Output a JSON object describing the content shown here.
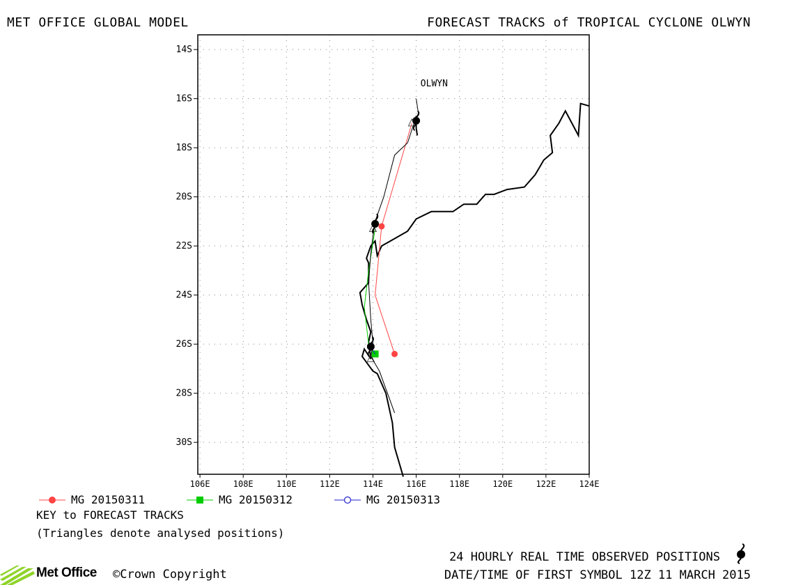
{
  "header": {
    "left_title": "MET OFFICE GLOBAL MODEL",
    "right_title": "FORECAST TRACKS of TROPICAL CYCLONE OLWYN"
  },
  "map": {
    "lat_range": [
      -31.3,
      -13.4
    ],
    "lon_range": [
      105.9,
      124.0
    ],
    "lat_ticks": [
      {
        "value": -14,
        "label": "14S"
      },
      {
        "value": -16,
        "label": "16S"
      },
      {
        "value": -18,
        "label": "18S"
      },
      {
        "value": -20,
        "label": "20S"
      },
      {
        "value": -22,
        "label": "22S"
      },
      {
        "value": -24,
        "label": "24S"
      },
      {
        "value": -26,
        "label": "26S"
      },
      {
        "value": -28,
        "label": "28S"
      },
      {
        "value": -30,
        "label": "30S"
      }
    ],
    "lon_ticks": [
      {
        "value": 106,
        "label": "106E"
      },
      {
        "value": 108,
        "label": "108E"
      },
      {
        "value": 110,
        "label": "110E"
      },
      {
        "value": 112,
        "label": "112E"
      },
      {
        "value": 114,
        "label": "114E"
      },
      {
        "value": 116,
        "label": "116E"
      },
      {
        "value": 118,
        "label": "118E"
      },
      {
        "value": 120,
        "label": "120E"
      },
      {
        "value": 122,
        "label": "122E"
      },
      {
        "value": 124,
        "label": "124E"
      }
    ],
    "storm_label": {
      "text": "OLWYN",
      "lon": 116.2,
      "lat": -15.5
    },
    "coastline": [
      [
        115.4,
        -31.4
      ],
      [
        115.0,
        -30.2
      ],
      [
        114.9,
        -29.2
      ],
      [
        114.6,
        -28.0
      ],
      [
        114.2,
        -27.2
      ],
      [
        114.0,
        -27.1
      ],
      [
        113.5,
        -26.5
      ],
      [
        113.6,
        -26.2
      ],
      [
        113.9,
        -26.6
      ],
      [
        113.8,
        -25.9
      ],
      [
        113.9,
        -25.5
      ],
      [
        113.7,
        -25.0
      ],
      [
        113.5,
        -24.4
      ],
      [
        113.4,
        -23.9
      ],
      [
        113.8,
        -23.5
      ],
      [
        113.8,
        -22.7
      ],
      [
        113.7,
        -22.5
      ],
      [
        113.9,
        -22.0
      ],
      [
        114.1,
        -21.8
      ],
      [
        114.2,
        -22.4
      ],
      [
        114.4,
        -22.0
      ],
      [
        115.0,
        -21.7
      ],
      [
        115.6,
        -21.4
      ],
      [
        116.0,
        -20.9
      ],
      [
        116.7,
        -20.6
      ],
      [
        117.7,
        -20.6
      ],
      [
        118.2,
        -20.3
      ],
      [
        118.8,
        -20.3
      ],
      [
        119.2,
        -19.9
      ],
      [
        119.6,
        -19.9
      ],
      [
        120.2,
        -19.7
      ],
      [
        121.0,
        -19.6
      ],
      [
        121.5,
        -19.1
      ],
      [
        121.9,
        -18.5
      ],
      [
        122.3,
        -18.2
      ],
      [
        122.2,
        -17.5
      ],
      [
        122.6,
        -17.0
      ],
      [
        122.9,
        -16.5
      ],
      [
        123.5,
        -17.5
      ],
      [
        123.6,
        -16.2
      ],
      [
        124.0,
        -16.3
      ]
    ],
    "coast_island": [
      [
        116.0,
        -16.7
      ],
      [
        116.0,
        -17.2
      ],
      [
        116.05,
        -17.5
      ]
    ],
    "colors": {
      "mg_20150311": "#ff4444",
      "mg_20150312": "#00cc00",
      "mg_20150313": "#2222cc",
      "observed": "#000000",
      "grid": "#808080",
      "coast": "#000000"
    },
    "tracks": [
      {
        "name": "MG 20150311",
        "color_key": "mg_20150311",
        "points": [
          [
            115.8,
            -17.0
          ],
          [
            114.4,
            -21.2
          ],
          [
            114.1,
            -24.0
          ],
          [
            115.0,
            -26.4
          ]
        ],
        "symbols": [
          [
            114.4,
            -21.2
          ],
          [
            115.0,
            -26.4
          ]
        ]
      },
      {
        "name": "MG 20150312",
        "color_key": "mg_20150312",
        "points": [
          [
            114.1,
            -21.3
          ],
          [
            113.8,
            -23.0
          ],
          [
            113.6,
            -24.5
          ],
          [
            113.8,
            -26.0
          ],
          [
            114.1,
            -26.4
          ]
        ],
        "symbols": [
          [
            114.1,
            -26.4
          ]
        ]
      },
      {
        "name": "MG 20150313",
        "color_key": "mg_20150313",
        "points": [
          [
            113.9,
            -26.1
          ],
          [
            114.1,
            -26.4
          ]
        ],
        "symbols": []
      }
    ],
    "observed_track": [
      [
        116.0,
        -16.0
      ],
      [
        116.1,
        -16.6
      ],
      [
        115.9,
        -17.0
      ],
      [
        115.6,
        -17.8
      ],
      [
        115.0,
        -18.3
      ],
      [
        114.5,
        -20.0
      ],
      [
        114.1,
        -21.0
      ],
      [
        114.0,
        -21.6
      ],
      [
        113.9,
        -22.3
      ],
      [
        113.8,
        -23.5
      ],
      [
        113.9,
        -25.0
      ],
      [
        114.0,
        -26.0
      ],
      [
        113.9,
        -26.5
      ],
      [
        114.3,
        -27.1
      ],
      [
        115.0,
        -28.8
      ]
    ],
    "observed_symbols": [
      [
        116.0,
        -16.9
      ],
      [
        114.1,
        -21.1
      ],
      [
        113.9,
        -26.1
      ]
    ],
    "analysed_triangles": [
      [
        115.8,
        -17.0
      ],
      [
        114.0,
        -21.3
      ],
      [
        113.9,
        -26.6
      ]
    ]
  },
  "legend": {
    "items": [
      {
        "label": "MG 20150311",
        "color_key": "mg_20150311",
        "symbol": "circle"
      },
      {
        "label": "MG 20150312",
        "color_key": "mg_20150312",
        "symbol": "square"
      },
      {
        "label": "MG 20150313",
        "color_key": "mg_20150313",
        "symbol": "open-circle"
      }
    ],
    "key_title": "KEY to FORECAST TRACKS",
    "key_note": "(Triangles denote analysed positions)"
  },
  "footer": {
    "logo_text": "Met Office",
    "copyright": "©Crown Copyright",
    "observed_label": "24 HOURLY REAL TIME OBSERVED POSITIONS",
    "date_label": "DATE/TIME OF FIRST SYMBOL 12Z 11 MARCH 2015"
  }
}
